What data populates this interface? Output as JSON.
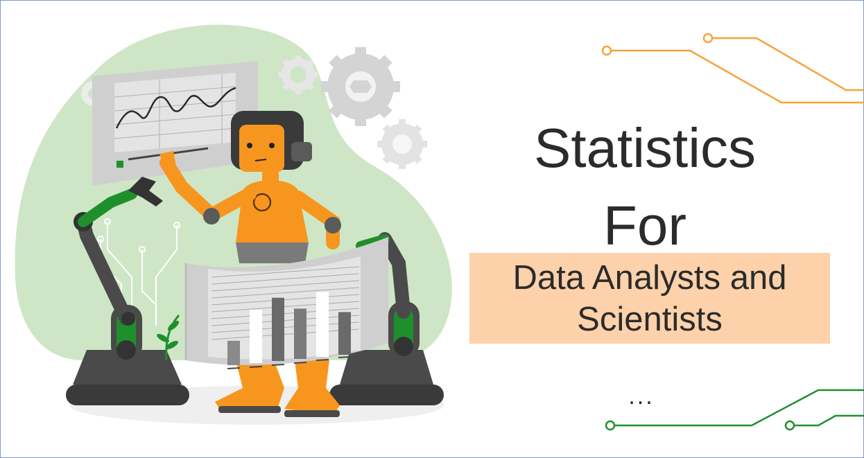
{
  "title": {
    "line1": "Statistics",
    "line2": "For"
  },
  "subtitle": "Data Analysts and Scientists",
  "ellipsis": "...",
  "colors": {
    "accent_orange": "#f7a23a",
    "accent_green": "#1f8f2c",
    "blob_green": "#cfe6c6",
    "subtitle_bg": "#fdd1aa",
    "text": "#2b2b2b",
    "robot_orange": "#f7961e",
    "gear_gray": "#d4d4d4",
    "screen_gray": "#cfcfcf"
  },
  "illustration": {
    "subject": "robot-icon",
    "screen_chart_bars": [
      0.32,
      0.7,
      0.83,
      0.66,
      0.85,
      0.56
    ]
  }
}
